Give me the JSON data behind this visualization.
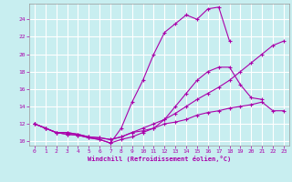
{
  "bg_color": "#c8eef0",
  "grid_color": "#ffffff",
  "line_color": "#aa00aa",
  "xlabel": "Windchill (Refroidissement éolien,°C)",
  "xlim": [
    -0.5,
    23.5
  ],
  "ylim": [
    9.5,
    25.8
  ],
  "yticks": [
    10,
    12,
    14,
    16,
    18,
    20,
    22,
    24
  ],
  "xticks": [
    0,
    1,
    2,
    3,
    4,
    5,
    6,
    7,
    8,
    9,
    10,
    11,
    12,
    13,
    14,
    15,
    16,
    17,
    18,
    19,
    20,
    21,
    22,
    23
  ],
  "series": [
    {
      "x": [
        0,
        1,
        2,
        3,
        4,
        5,
        6,
        7,
        8,
        9,
        10,
        11,
        12,
        13,
        14,
        15,
        16,
        17,
        18
      ],
      "y": [
        12.0,
        11.5,
        11.0,
        10.8,
        10.7,
        10.4,
        10.2,
        9.8,
        11.5,
        14.5,
        17.0,
        20.0,
        22.5,
        23.5,
        24.5,
        24.0,
        25.2,
        25.4,
        21.5
      ]
    },
    {
      "x": [
        0,
        1,
        2,
        3,
        4,
        5,
        6,
        7,
        8,
        9,
        10,
        11,
        12,
        13,
        14,
        15,
        16,
        17,
        18,
        19,
        20,
        21
      ],
      "y": [
        12.0,
        11.5,
        11.0,
        10.8,
        10.7,
        10.4,
        10.2,
        9.8,
        10.2,
        10.5,
        11.0,
        11.5,
        12.5,
        14.0,
        15.5,
        17.0,
        18.0,
        18.5,
        18.5,
        16.5,
        15.0,
        14.8
      ]
    },
    {
      "x": [
        0,
        1,
        2,
        3,
        4,
        5,
        6,
        7,
        8,
        9,
        10,
        11,
        12,
        13,
        14,
        15,
        16,
        17,
        18,
        19,
        20,
        21,
        22,
        23
      ],
      "y": [
        12.0,
        11.5,
        11.0,
        11.0,
        10.8,
        10.5,
        10.4,
        10.2,
        10.5,
        11.0,
        11.5,
        12.0,
        12.5,
        13.2,
        14.0,
        14.8,
        15.5,
        16.2,
        17.0,
        18.0,
        19.0,
        20.0,
        21.0,
        21.5
      ]
    },
    {
      "x": [
        0,
        1,
        2,
        3,
        4,
        5,
        6,
        7,
        8,
        9,
        10,
        11,
        12,
        13,
        14,
        15,
        16,
        17,
        18,
        19,
        20,
        21,
        22,
        23
      ],
      "y": [
        12.0,
        11.5,
        11.0,
        11.0,
        10.8,
        10.5,
        10.4,
        10.2,
        10.5,
        11.0,
        11.2,
        11.5,
        12.0,
        12.2,
        12.5,
        13.0,
        13.3,
        13.5,
        13.8,
        14.0,
        14.2,
        14.5,
        13.5,
        13.5
      ]
    }
  ]
}
